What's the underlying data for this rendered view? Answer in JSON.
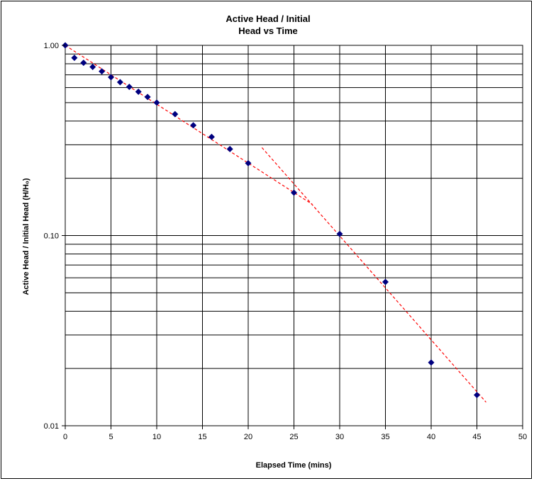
{
  "chart_data": {
    "type": "scatter",
    "title_line1": "Active Head / Initial",
    "title_line2": "Head vs Time",
    "xlabel": "Elapsed Time (mins)",
    "ylabel": "Active Head / Initial Head (H/H₀)",
    "xlim": [
      0,
      50
    ],
    "ylim": [
      0.01,
      1.0
    ],
    "y_scale": "log",
    "x_ticks": [
      0,
      5,
      10,
      15,
      20,
      25,
      30,
      35,
      40,
      45,
      50
    ],
    "x_tick_labels": [
      "0",
      "5",
      "10",
      "15",
      "20",
      "25",
      "30",
      "35",
      "40",
      "45",
      "50"
    ],
    "y_ticks": [
      0.01,
      0.1,
      1.0
    ],
    "y_tick_labels": [
      "0.01",
      "0.10",
      "1.00"
    ],
    "grid": true,
    "legend": "none",
    "marker_color": "#00007F",
    "trend_color": "#FF0000",
    "series": [
      {
        "x": [
          0,
          1,
          2,
          3,
          4,
          5,
          6,
          7,
          8,
          9,
          10,
          12,
          14,
          16,
          18,
          20,
          25,
          30,
          35,
          40,
          45
        ],
        "y": [
          1.0,
          0.86,
          0.81,
          0.77,
          0.73,
          0.68,
          0.64,
          0.605,
          0.57,
          0.535,
          0.5,
          0.435,
          0.38,
          0.33,
          0.285,
          0.24,
          0.168,
          0.102,
          0.057,
          0.0215,
          0.0145
        ]
      }
    ],
    "trendlines": [
      {
        "x": [
          0,
          27
        ],
        "y": [
          1.0,
          0.146
        ]
      },
      {
        "x": [
          21.5,
          46
        ],
        "y": [
          0.29,
          0.0133
        ]
      }
    ]
  }
}
